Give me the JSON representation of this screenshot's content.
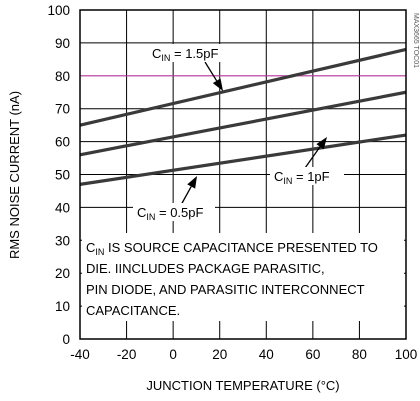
{
  "watermark": "MAX3665 TOC01",
  "chart_data": {
    "type": "line",
    "xlabel": "JUNCTION TEMPERATURE (°C)",
    "ylabel": "RMS NOISE CURRENT (nA)",
    "xlim": [
      -40,
      100
    ],
    "ylim": [
      0,
      100
    ],
    "xticks": [
      -40,
      -20,
      0,
      20,
      40,
      60,
      80,
      100
    ],
    "yticks": [
      0,
      10,
      20,
      30,
      40,
      50,
      60,
      70,
      80,
      90,
      100
    ],
    "grid": true,
    "reference_line": {
      "y": 80,
      "color": "#b0309a"
    },
    "series": [
      {
        "name": "CIN = 1.5pF",
        "label_main": "C",
        "label_sub": "IN",
        "label_rest": " = 1.5pF",
        "x": [
          -40,
          100
        ],
        "y": [
          65,
          88
        ]
      },
      {
        "name": "CIN = 1pF",
        "label_main": "C",
        "label_sub": "IN",
        "label_rest": " = 1pF",
        "x": [
          -40,
          100
        ],
        "y": [
          56,
          75
        ]
      },
      {
        "name": "CIN = 0.5pF",
        "label_main": "C",
        "label_sub": "IN",
        "label_rest": " = 0.5pF",
        "x": [
          -40,
          100
        ],
        "y": [
          47,
          62
        ]
      }
    ],
    "note": {
      "line1_main": "C",
      "line1_sub": "IN",
      "line1_rest": " IS SOURCE CAPACITANCE PRESENTED TO",
      "line2": "DIE. IINCLUDES PACKAGE PARASITIC,",
      "line3": "PIN DIODE, AND PARASITIC INTERCONNECT",
      "line4": "CAPACITANCE."
    }
  }
}
